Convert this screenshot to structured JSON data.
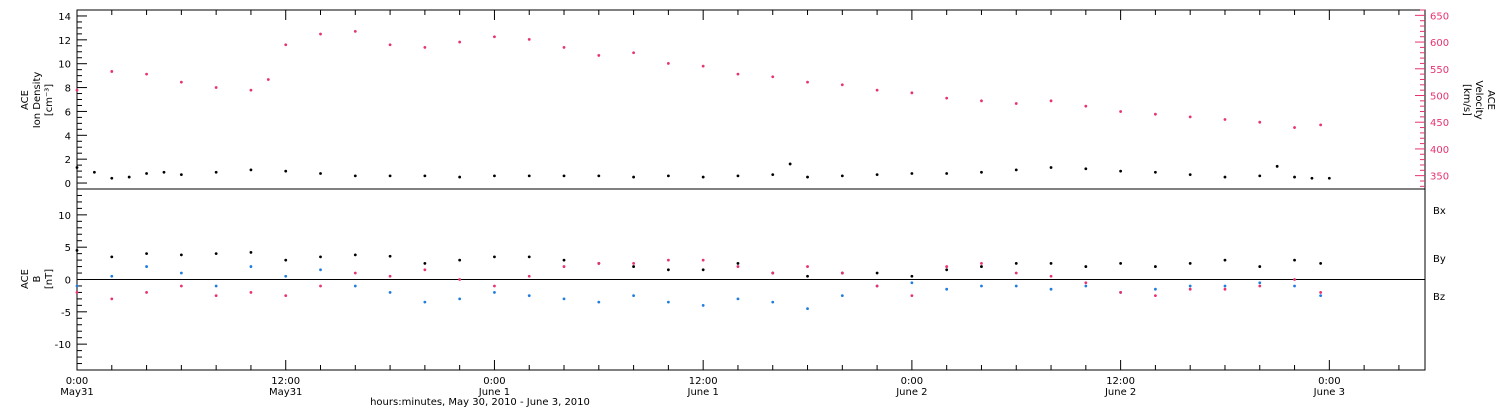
{
  "colors": {
    "density": "#000000",
    "velocity": "#e8336e",
    "bx": "#000000",
    "by": "#1f7de0",
    "bz": "#e8336e"
  },
  "top_panel": {
    "left_label_lines": [
      "ACE",
      "Ion Density",
      "[cm⁻³]"
    ],
    "right_label_lines": [
      "ACE",
      "Velocity",
      "[km/s]"
    ]
  },
  "bottom_panel": {
    "left_label_lines": [
      "ACE",
      "B",
      "[nT]"
    ],
    "legend": [
      "Bx",
      "By",
      "Bz"
    ]
  },
  "x_axis": {
    "title": "hours:minutes, May 30, 2010 - June  3, 2010",
    "major_ticks": [
      {
        "t": 0,
        "time": "0:00",
        "date": "May31"
      },
      {
        "t": 12,
        "time": "12:00",
        "date": "May31"
      },
      {
        "t": 24,
        "time": "0:00",
        "date": "June 1"
      },
      {
        "t": 36,
        "time": "12:00",
        "date": "June 1"
      },
      {
        "t": 48,
        "time": "0:00",
        "date": "June 2"
      },
      {
        "t": 60,
        "time": "12:00",
        "date": "June 2"
      },
      {
        "t": 72,
        "time": "0:00",
        "date": "June 3"
      }
    ]
  },
  "chart_data": [
    {
      "type": "scatter",
      "title": "",
      "xlabel": "hours:minutes, May 30, 2010 - June  3, 2010",
      "x_unit": "hours since May 31 0:00",
      "xlim": [
        0,
        77.5
      ],
      "ylim_left": [
        -0.5,
        14.5
      ],
      "yticks_left": [
        0,
        2,
        4,
        6,
        8,
        10,
        12,
        14
      ],
      "ylim_right": [
        325,
        660
      ],
      "yticks_right": [
        350,
        400,
        450,
        500,
        550,
        600,
        650
      ],
      "series": [
        {
          "name": "Ion Density",
          "axis": "left",
          "x": [
            0,
            1,
            2,
            3,
            4,
            5,
            6,
            8,
            10,
            12,
            14,
            16,
            18,
            20,
            22,
            24,
            26,
            28,
            30,
            32,
            34,
            36,
            38,
            40,
            41,
            42,
            44,
            46,
            48,
            50,
            52,
            54,
            56,
            58,
            60,
            62,
            64,
            66,
            68,
            69,
            70,
            71,
            72
          ],
          "values": [
            1.3,
            0.9,
            0.4,
            0.5,
            0.8,
            0.9,
            0.7,
            0.9,
            1.1,
            1.0,
            0.8,
            0.6,
            0.6,
            0.6,
            0.5,
            0.6,
            0.6,
            0.6,
            0.6,
            0.5,
            0.6,
            0.5,
            0.6,
            0.7,
            1.6,
            0.5,
            0.6,
            0.7,
            0.8,
            0.8,
            0.9,
            1.1,
            1.3,
            1.2,
            1.0,
            0.9,
            0.7,
            0.5,
            0.6,
            1.4,
            0.5,
            0.4,
            0.4
          ]
        },
        {
          "name": "Velocity",
          "axis": "right",
          "x": [
            0,
            2,
            4,
            6,
            8,
            10,
            11,
            12,
            14,
            16,
            18,
            20,
            22,
            24,
            26,
            28,
            30,
            32,
            34,
            36,
            38,
            40,
            42,
            44,
            46,
            48,
            50,
            52,
            54,
            56,
            58,
            60,
            62,
            64,
            66,
            68,
            70,
            71.5
          ],
          "values": [
            510,
            545,
            540,
            525,
            515,
            510,
            530,
            595,
            615,
            620,
            595,
            590,
            600,
            610,
            605,
            590,
            575,
            580,
            560,
            555,
            540,
            535,
            525,
            520,
            510,
            505,
            495,
            490,
            485,
            490,
            480,
            470,
            465,
            460,
            455,
            450,
            440,
            445
          ]
        }
      ]
    },
    {
      "type": "scatter",
      "title": "",
      "xlabel": "hours:minutes, May 30, 2010 - June  3, 2010",
      "ylabel": "[nT]",
      "xlim": [
        0,
        77.5
      ],
      "ylim": [
        -14,
        14
      ],
      "yticks": [
        -10,
        -5,
        0,
        5,
        10
      ],
      "series": [
        {
          "name": "Bx",
          "x": [
            0,
            2,
            4,
            6,
            8,
            10,
            12,
            14,
            16,
            18,
            20,
            22,
            24,
            26,
            28,
            30,
            32,
            34,
            36,
            38,
            40,
            42,
            44,
            46,
            48,
            50,
            52,
            54,
            56,
            58,
            60,
            62,
            64,
            66,
            68,
            70,
            71.5
          ],
          "values": [
            4.5,
            3.5,
            4.0,
            3.8,
            4.0,
            4.2,
            3.0,
            3.5,
            3.8,
            3.6,
            2.5,
            3.0,
            3.5,
            3.5,
            3.0,
            2.5,
            2.0,
            1.5,
            1.5,
            2.5,
            1.0,
            0.5,
            1.0,
            1.0,
            0.5,
            1.5,
            2.0,
            2.5,
            2.5,
            2.0,
            2.5,
            2.0,
            2.5,
            3.0,
            2.0,
            3.0,
            2.5
          ]
        },
        {
          "name": "By",
          "x": [
            0,
            2,
            4,
            6,
            8,
            10,
            12,
            14,
            16,
            18,
            20,
            22,
            24,
            26,
            28,
            30,
            32,
            34,
            36,
            38,
            40,
            42,
            44,
            46,
            48,
            50,
            52,
            54,
            56,
            58,
            60,
            62,
            64,
            66,
            68,
            70,
            71.5
          ],
          "values": [
            -1.0,
            0.5,
            2.0,
            1.0,
            -1.0,
            2.0,
            0.5,
            1.5,
            -1.0,
            -2.0,
            -3.5,
            -3.0,
            -2.0,
            -2.5,
            -3.0,
            -3.5,
            -2.5,
            -3.5,
            -4.0,
            -3.0,
            -3.5,
            -4.5,
            -2.5,
            -1.0,
            -0.5,
            -1.5,
            -1.0,
            -1.0,
            -1.5,
            -1.0,
            -2.0,
            -1.5,
            -1.0,
            -1.0,
            -0.5,
            -1.0,
            -2.5
          ]
        },
        {
          "name": "Bz",
          "x": [
            0,
            2,
            4,
            6,
            8,
            10,
            12,
            14,
            16,
            18,
            20,
            22,
            24,
            26,
            28,
            30,
            32,
            34,
            36,
            38,
            40,
            42,
            44,
            46,
            48,
            50,
            52,
            54,
            56,
            58,
            60,
            62,
            64,
            66,
            68,
            70,
            71.5
          ],
          "values": [
            -2.0,
            -3.0,
            -2.0,
            -1.0,
            -2.5,
            -2.0,
            -2.5,
            -1.0,
            1.0,
            0.5,
            1.5,
            0.0,
            -1.0,
            0.5,
            2.0,
            2.5,
            2.5,
            3.0,
            3.0,
            2.0,
            1.0,
            2.0,
            1.0,
            -1.0,
            -2.5,
            2.0,
            2.5,
            1.0,
            0.5,
            -0.5,
            -2.0,
            -2.5,
            -1.5,
            -1.5,
            -1.0,
            0.0,
            -2.0
          ]
        }
      ]
    }
  ]
}
